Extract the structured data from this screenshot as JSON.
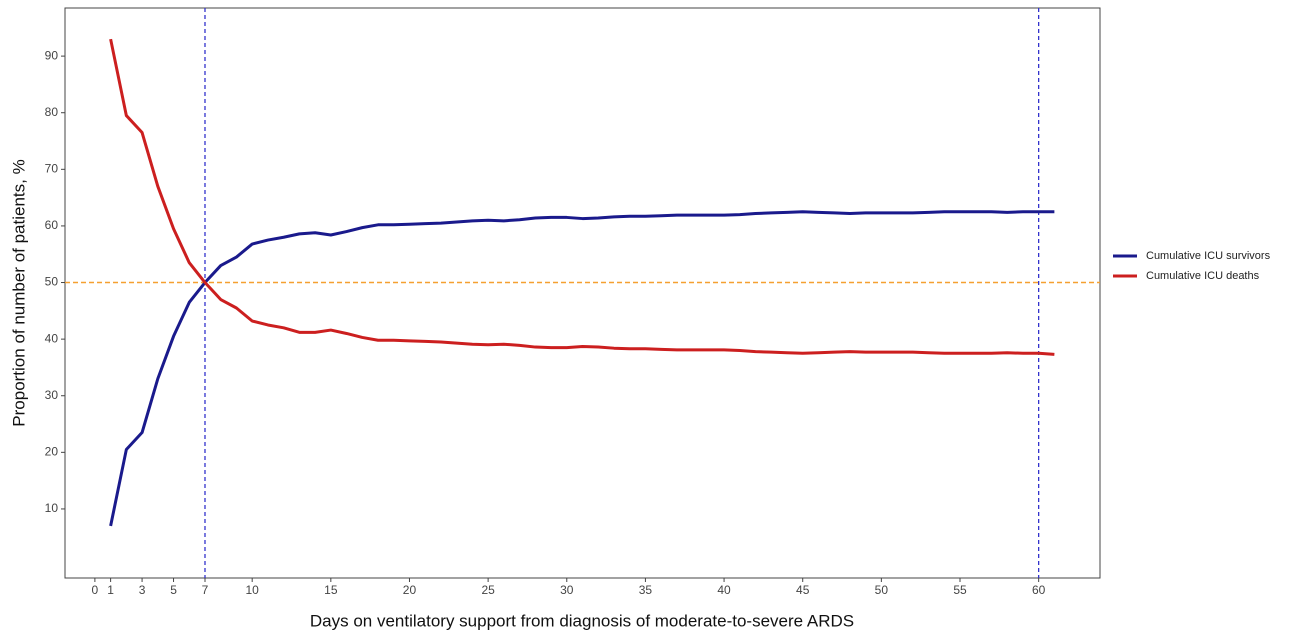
{
  "chart_data": {
    "type": "line",
    "x_label": "Days on ventilatory support from diagnosis of moderate-to-severe ARDS",
    "y_label": "Proportion of number of patients, %",
    "x": [
      1,
      2,
      3,
      4,
      5,
      6,
      7,
      8,
      9,
      10,
      11,
      12,
      13,
      14,
      15,
      16,
      17,
      18,
      19,
      20,
      21,
      22,
      23,
      24,
      25,
      26,
      27,
      28,
      29,
      30,
      31,
      32,
      33,
      34,
      35,
      36,
      37,
      38,
      39,
      40,
      41,
      42,
      43,
      44,
      45,
      46,
      47,
      48,
      49,
      50,
      51,
      52,
      53,
      54,
      55,
      56,
      57,
      58,
      59,
      60,
      61
    ],
    "series": [
      {
        "name": "Cumulative ICU survivors",
        "color": "#1a1a8c",
        "values": [
          7,
          20.5,
          23.5,
          33,
          40.5,
          46.5,
          50,
          53,
          54.5,
          56.8,
          57.5,
          58,
          58.6,
          58.8,
          58.4,
          59,
          59.7,
          60.2,
          60.2,
          60.3,
          60.4,
          60.5,
          60.7,
          60.9,
          61,
          60.9,
          61.1,
          61.4,
          61.5,
          61.5,
          61.3,
          61.4,
          61.6,
          61.7,
          61.7,
          61.8,
          61.9,
          61.9,
          61.9,
          61.9,
          62,
          62.2,
          62.3,
          62.4,
          62.5,
          62.4,
          62.3,
          62.2,
          62.3,
          62.3,
          62.3,
          62.3,
          62.4,
          62.5,
          62.5,
          62.5,
          62.5,
          62.4,
          62.5,
          62.5,
          62.5
        ]
      },
      {
        "name": "Cumulative ICU deaths",
        "color": "#cc1f1f",
        "values": [
          93,
          79.5,
          76.5,
          67,
          59.5,
          53.5,
          50,
          47,
          45.5,
          43.2,
          42.5,
          42,
          41.2,
          41.2,
          41.6,
          41,
          40.3,
          39.8,
          39.8,
          39.7,
          39.6,
          39.5,
          39.3,
          39.1,
          39,
          39.1,
          38.9,
          38.6,
          38.5,
          38.5,
          38.7,
          38.6,
          38.4,
          38.3,
          38.3,
          38.2,
          38.1,
          38.1,
          38.1,
          38.1,
          38,
          37.8,
          37.7,
          37.6,
          37.5,
          37.6,
          37.7,
          37.8,
          37.7,
          37.7,
          37.7,
          37.7,
          37.6,
          37.5,
          37.5,
          37.5,
          37.5,
          37.6,
          37.5,
          37.5,
          37.3
        ]
      }
    ],
    "xlim": [
      -1.9,
      63.9
    ],
    "ylim": [
      -2.2,
      98.5
    ],
    "xticks": [
      0,
      1,
      3,
      5,
      7,
      10,
      15,
      20,
      25,
      30,
      35,
      40,
      45,
      50,
      55,
      60
    ],
    "yticks": [
      10,
      20,
      30,
      40,
      50,
      60,
      70,
      80,
      90
    ],
    "vlines": {
      "values": [
        7,
        60
      ],
      "color": "#3333cc"
    },
    "hline": {
      "value": 50,
      "color": "#f5a030"
    },
    "legend": "right"
  }
}
